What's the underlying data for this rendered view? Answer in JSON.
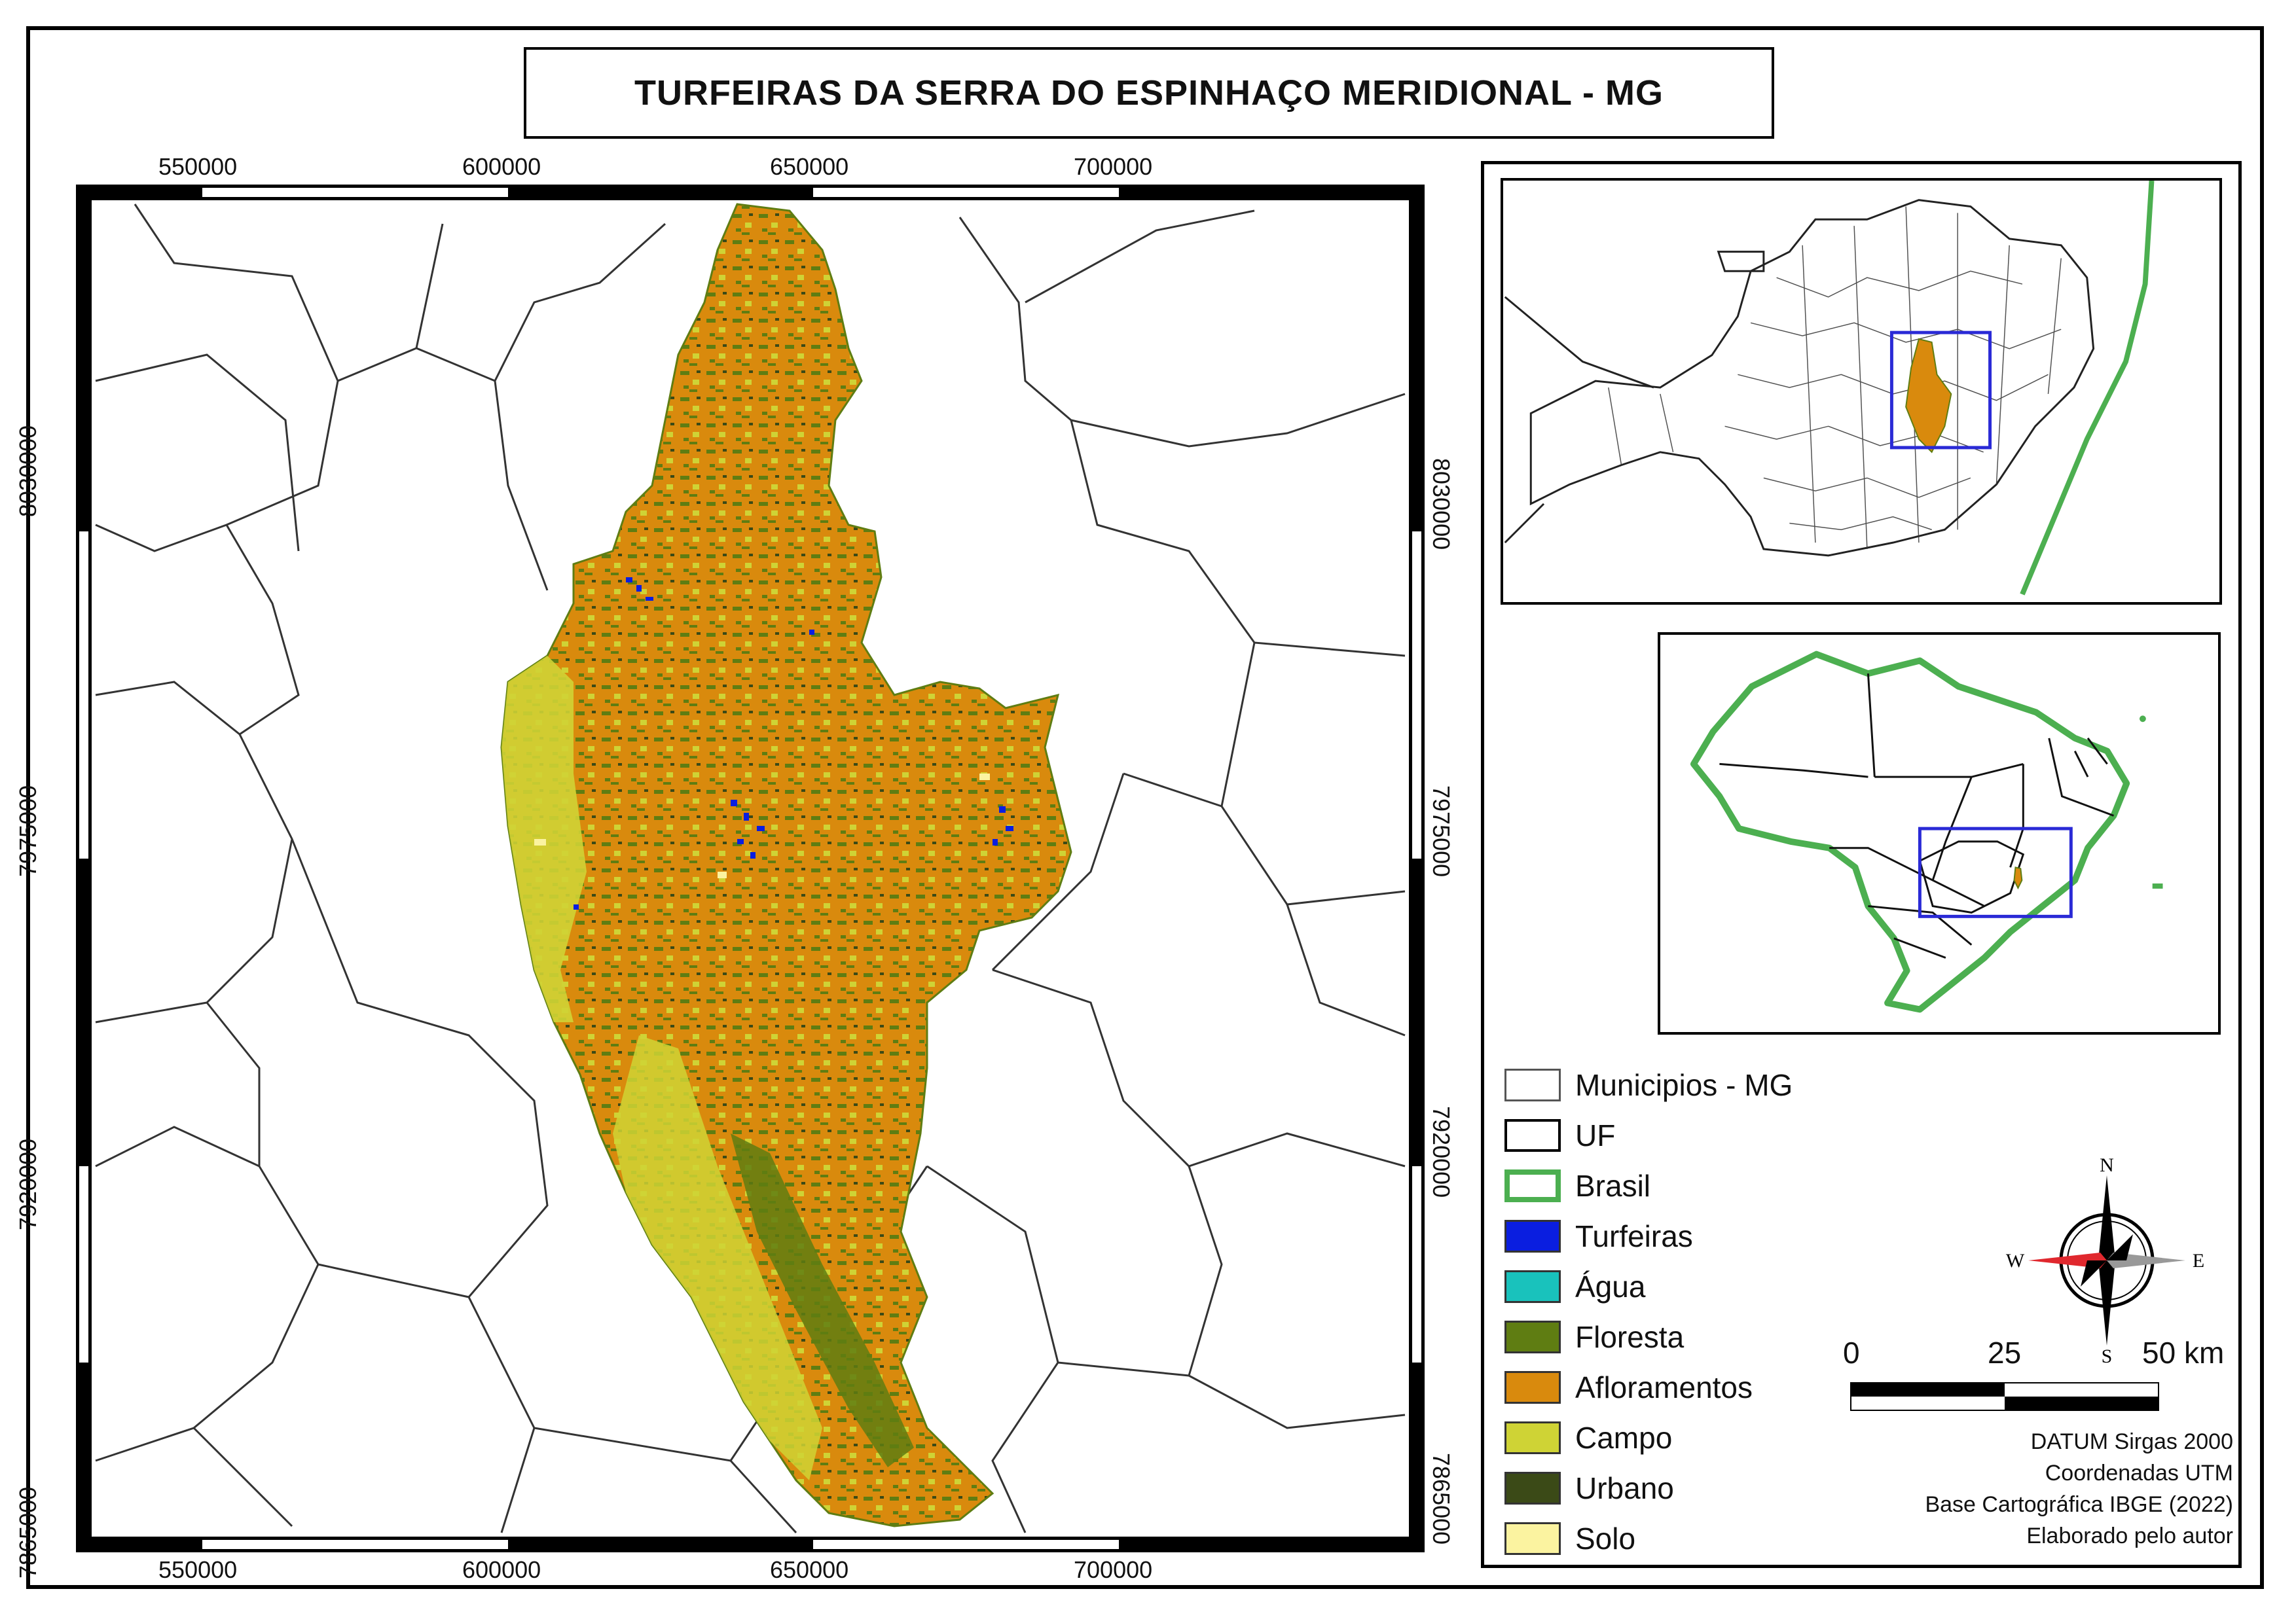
{
  "title": "TURFEIRAS DA SERRA DO ESPINHAÇO MERIDIONAL -  MG",
  "grid": {
    "x_labels": [
      "550000",
      "600000",
      "650000",
      "700000"
    ],
    "y_labels_left": [
      "8030000",
      "7975000",
      "7920000",
      "7865000"
    ],
    "y_labels_right": [
      "8030000",
      "7975000",
      "7920000",
      "7865000"
    ]
  },
  "legend": {
    "items": [
      {
        "label": "Municipios - MG",
        "fill": "#ffffff",
        "stroke": "#555555"
      },
      {
        "label": "UF",
        "fill": "#ffffff",
        "stroke": "#000000"
      },
      {
        "label": "Brasil",
        "fill": "#ffffff",
        "stroke": "#4caf50"
      },
      {
        "label": "Turfeiras",
        "fill": "#0a1ee0",
        "stroke": "#333333"
      },
      {
        "label": "Água",
        "fill": "#19c2bc",
        "stroke": "#333333"
      },
      {
        "label": "Floresta",
        "fill": "#5f7d12",
        "stroke": "#333333"
      },
      {
        "label": "Afloramentos",
        "fill": "#d98a0d",
        "stroke": "#333333"
      },
      {
        "label": "Campo",
        "fill": "#cfd335",
        "stroke": "#333333"
      },
      {
        "label": "Urbano",
        "fill": "#3b4a17",
        "stroke": "#333333"
      },
      {
        "label": "Solo",
        "fill": "#fbf3a0",
        "stroke": "#333333"
      }
    ]
  },
  "north_arrow": {
    "n": "N",
    "s": "S",
    "e": "E",
    "w": "W"
  },
  "scale_bar": {
    "labels": [
      "0",
      "25",
      "50 km"
    ]
  },
  "credits": [
    "DATUM Sirgas 2000",
    "Coordenadas UTM",
    "Base Cartográfica IBGE (2022)",
    "Elaborado pelo autor"
  ],
  "colors": {
    "turfeiras": "#0a1ee0",
    "floresta": "#5f7d12",
    "afloramentos": "#d98a0d",
    "campo": "#cfd335",
    "solo": "#fbf3a0",
    "brasil_outline": "#4caf50",
    "highlight_box": "#2a2ad6"
  }
}
